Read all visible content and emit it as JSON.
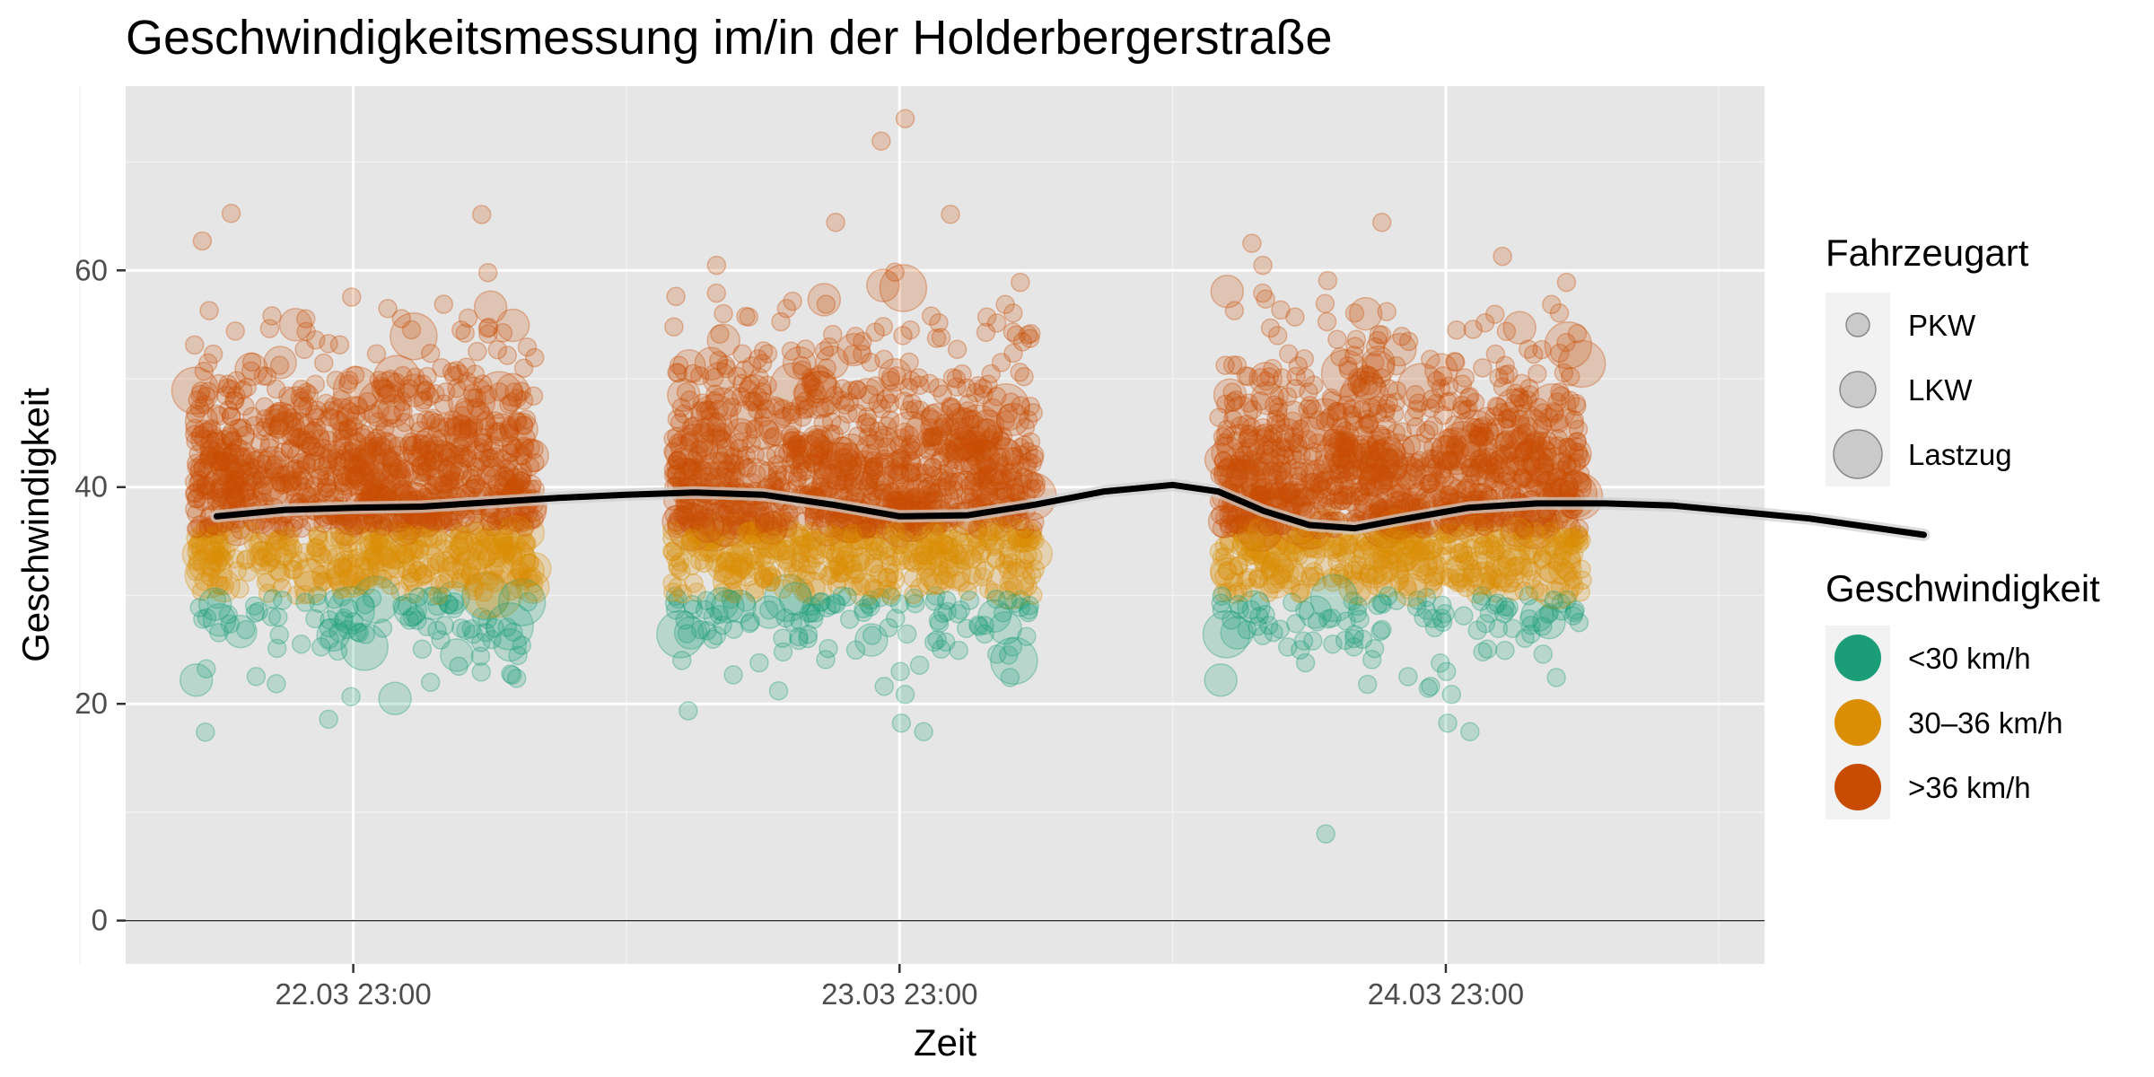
{
  "chart_data": {
    "type": "scatter",
    "title": "Geschwindigkeitsmessung im/in der Holderbergerstraße",
    "xlabel": "Zeit",
    "ylabel": "Geschwindigkeit",
    "x_unit": "hours since 22.03 00:00",
    "x_range": [
      13.0,
      85.0
    ],
    "x_ticks": [
      23,
      47,
      71
    ],
    "x_tick_labels": [
      "22.03 23:00",
      "23.03 23:00",
      "24.03 23:00"
    ],
    "x_minor_ticks": [
      11,
      35,
      59,
      83
    ],
    "ylim": [
      -4,
      77
    ],
    "y_ticks": [
      0,
      20,
      40,
      60
    ],
    "y_minor_ticks": [
      10,
      30,
      50,
      70
    ],
    "grid": true,
    "legend_position": "right",
    "legend_size": {
      "title": "Fahrzeugart",
      "items": [
        {
          "label": "PKW",
          "size": 1
        },
        {
          "label": "LKW",
          "size": 2
        },
        {
          "label": "Lastzug",
          "size": 3
        }
      ]
    },
    "legend_color": {
      "title": "Geschwindigkeit",
      "items": [
        {
          "label": "<30 km/h",
          "color": "#1b9e77"
        },
        {
          "label": "30–36 km/h",
          "color": "#d98e04"
        },
        {
          "label": ">36 km/h",
          "color": "#c94c04"
        }
      ]
    },
    "measurement_windows": [
      {
        "start": 16.0,
        "end": 31.0
      },
      {
        "start": 37.0,
        "end": 53.0
      },
      {
        "start": 61.0,
        "end": 77.0
      },
      {
        "start": 85.0,
        "end": 93.0
      }
    ],
    "speed_distribution": {
      "mean": 39.0,
      "sd": 6.5,
      "min": 8,
      "max": 74
    },
    "trend": {
      "name": "smooth",
      "color": "#000000",
      "points": [
        [
          17,
          37.3
        ],
        [
          20,
          37.9
        ],
        [
          23,
          38.1
        ],
        [
          26,
          38.2
        ],
        [
          29,
          38.6
        ],
        [
          32,
          39.0
        ],
        [
          35,
          39.3
        ],
        [
          38,
          39.5
        ],
        [
          41,
          39.3
        ],
        [
          44,
          38.4
        ],
        [
          47,
          37.3
        ],
        [
          50,
          37.4
        ],
        [
          53,
          38.4
        ],
        [
          56,
          39.6
        ],
        [
          59,
          40.2
        ],
        [
          61,
          39.6
        ],
        [
          63,
          37.8
        ],
        [
          65,
          36.5
        ],
        [
          67,
          36.2
        ],
        [
          69,
          37.0
        ],
        [
          72,
          38.1
        ],
        [
          75,
          38.5
        ],
        [
          78,
          38.5
        ],
        [
          81,
          38.3
        ],
        [
          84,
          37.7
        ],
        [
          87,
          37.1
        ],
        [
          90,
          36.2
        ],
        [
          92,
          35.6
        ]
      ]
    }
  }
}
